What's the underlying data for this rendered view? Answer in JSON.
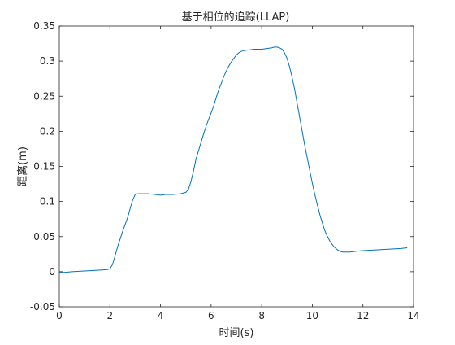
{
  "chart_data": {
    "type": "line",
    "title": "基于相位的追踪(LLAP)",
    "xlabel": "时间(s)",
    "ylabel": "距离(m)",
    "xlim": [
      0,
      14
    ],
    "ylim": [
      -0.05,
      0.35
    ],
    "xticks": [
      0,
      2,
      4,
      6,
      8,
      10,
      12,
      14
    ],
    "xtick_labels": [
      "0",
      "2",
      "4",
      "6",
      "8",
      "10",
      "12",
      "14"
    ],
    "yticks": [
      -0.05,
      0,
      0.05,
      0.1,
      0.15,
      0.2,
      0.25,
      0.3,
      0.35
    ],
    "ytick_labels": [
      "-0.05",
      "0",
      "0.05",
      "0.1",
      "0.15",
      "0.2",
      "0.25",
      "0.3",
      "0.35"
    ],
    "grid": false,
    "legend": "none",
    "line_color": "#0072BD",
    "series": [
      {
        "x": [
          0,
          0.2,
          0.5,
          1.0,
          1.5,
          1.9,
          2.0,
          2.1,
          2.2,
          2.3,
          2.4,
          2.5,
          2.6,
          2.7,
          2.8,
          2.9,
          3.0,
          3.1,
          3.2,
          3.5,
          3.8,
          4.0,
          4.2,
          4.5,
          4.8,
          5.0,
          5.1,
          5.2,
          5.3,
          5.4,
          5.5,
          5.6,
          5.7,
          5.8,
          5.9,
          6.0,
          6.1,
          6.2,
          6.3,
          6.4,
          6.5,
          6.6,
          6.7,
          6.8,
          6.9,
          7.0,
          7.1,
          7.2,
          7.3,
          7.5,
          7.7,
          8.0,
          8.2,
          8.4,
          8.5,
          8.6,
          8.7,
          8.8,
          8.9,
          9.0,
          9.1,
          9.2,
          9.3,
          9.4,
          9.5,
          9.6,
          9.7,
          9.8,
          9.9,
          10.0,
          10.1,
          10.2,
          10.3,
          10.4,
          10.5,
          10.6,
          10.7,
          10.8,
          10.9,
          11.0,
          11.1,
          11.2,
          11.3,
          11.4,
          11.5,
          11.7,
          12.0,
          12.5,
          13.0,
          13.5,
          13.75
        ],
        "y": [
          -0.001,
          -0.001,
          0.0,
          0.001,
          0.002,
          0.003,
          0.004,
          0.01,
          0.022,
          0.035,
          0.046,
          0.057,
          0.067,
          0.077,
          0.09,
          0.102,
          0.11,
          0.111,
          0.111,
          0.111,
          0.11,
          0.109,
          0.11,
          0.11,
          0.111,
          0.113,
          0.117,
          0.128,
          0.143,
          0.16,
          0.172,
          0.184,
          0.196,
          0.207,
          0.217,
          0.226,
          0.236,
          0.248,
          0.259,
          0.268,
          0.278,
          0.286,
          0.293,
          0.299,
          0.304,
          0.309,
          0.312,
          0.314,
          0.315,
          0.316,
          0.317,
          0.317,
          0.318,
          0.319,
          0.32,
          0.32,
          0.319,
          0.317,
          0.312,
          0.304,
          0.292,
          0.277,
          0.26,
          0.24,
          0.22,
          0.2,
          0.18,
          0.162,
          0.144,
          0.126,
          0.11,
          0.095,
          0.081,
          0.069,
          0.058,
          0.05,
          0.043,
          0.038,
          0.034,
          0.031,
          0.029,
          0.028,
          0.028,
          0.028,
          0.028,
          0.029,
          0.03,
          0.031,
          0.032,
          0.033,
          0.034
        ]
      }
    ]
  }
}
